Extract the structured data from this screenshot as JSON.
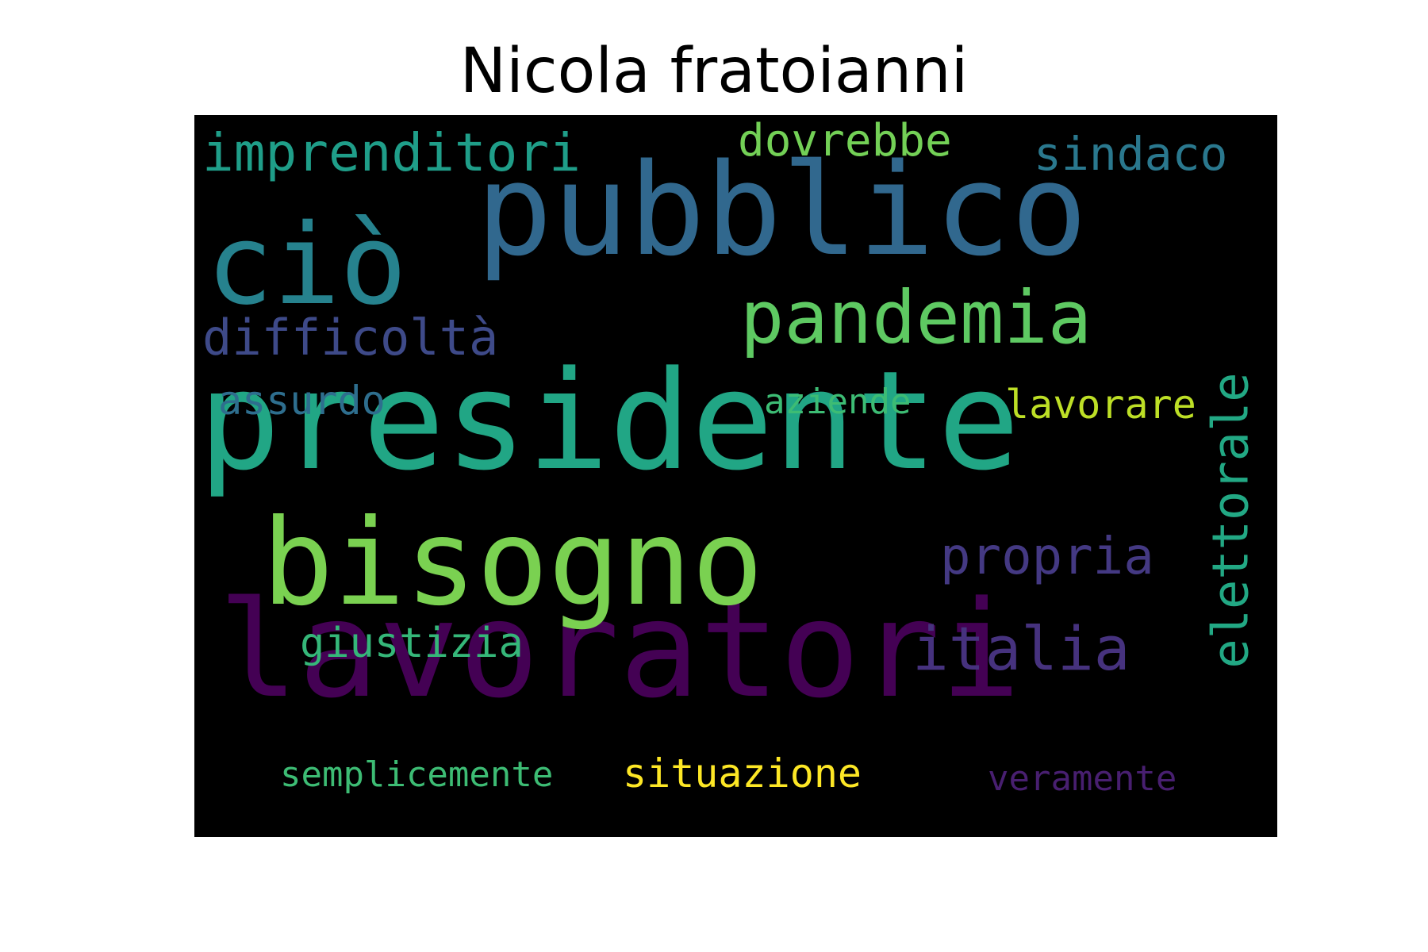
{
  "title": "Nicola fratoianni",
  "palette": {
    "background": "#000000",
    "title_color": "#000000",
    "c_purple": "#440154",
    "c_indigo": "#472d7b",
    "c_slate": "#3b528b",
    "c_blue": "#2c728e",
    "c_teal": "#21918c",
    "c_green": "#28ae80",
    "c_lime": "#5ec962",
    "c_yellowgreen": "#addc30",
    "c_yellow": "#fde725"
  },
  "words": [
    {
      "text": "presidente",
      "weight": 100,
      "color": "#21a685"
    },
    {
      "text": "lavoratori",
      "weight": 98,
      "color": "#440154"
    },
    {
      "text": "pubblico",
      "weight": 95,
      "color": "#31688e"
    },
    {
      "text": "bisogno",
      "weight": 92,
      "color": "#7ad151"
    },
    {
      "text": "ciò",
      "weight": 88,
      "color": "#26828e"
    },
    {
      "text": "pandemia",
      "weight": 72,
      "color": "#5ec962"
    },
    {
      "text": "italia",
      "weight": 58,
      "color": "#46327e"
    },
    {
      "text": "imprenditori",
      "weight": 55,
      "color": "#1f9e89"
    },
    {
      "text": "difficoltà",
      "weight": 52,
      "color": "#3e4a89"
    },
    {
      "text": "elettorale",
      "weight": 52,
      "color": "#22a884"
    },
    {
      "text": "propria",
      "weight": 50,
      "color": "#443983"
    },
    {
      "text": "sindaco",
      "weight": 48,
      "color": "#2a788e"
    },
    {
      "text": "dovrebbe",
      "weight": 45,
      "color": "#73d056"
    },
    {
      "text": "giustizia",
      "weight": 45,
      "color": "#35b779"
    },
    {
      "text": "lavorare",
      "weight": 42,
      "color": "#bddf26"
    },
    {
      "text": "assurdo",
      "weight": 41,
      "color": "#2e6e8e"
    },
    {
      "text": "aziende",
      "weight": 40,
      "color": "#3dbc74"
    },
    {
      "text": "situazione",
      "weight": 40,
      "color": "#fde725"
    },
    {
      "text": "semplicemente",
      "weight": 38,
      "color": "#3dbc74"
    },
    {
      "text": "veramente",
      "weight": 38,
      "color": "#481f70"
    }
  ]
}
